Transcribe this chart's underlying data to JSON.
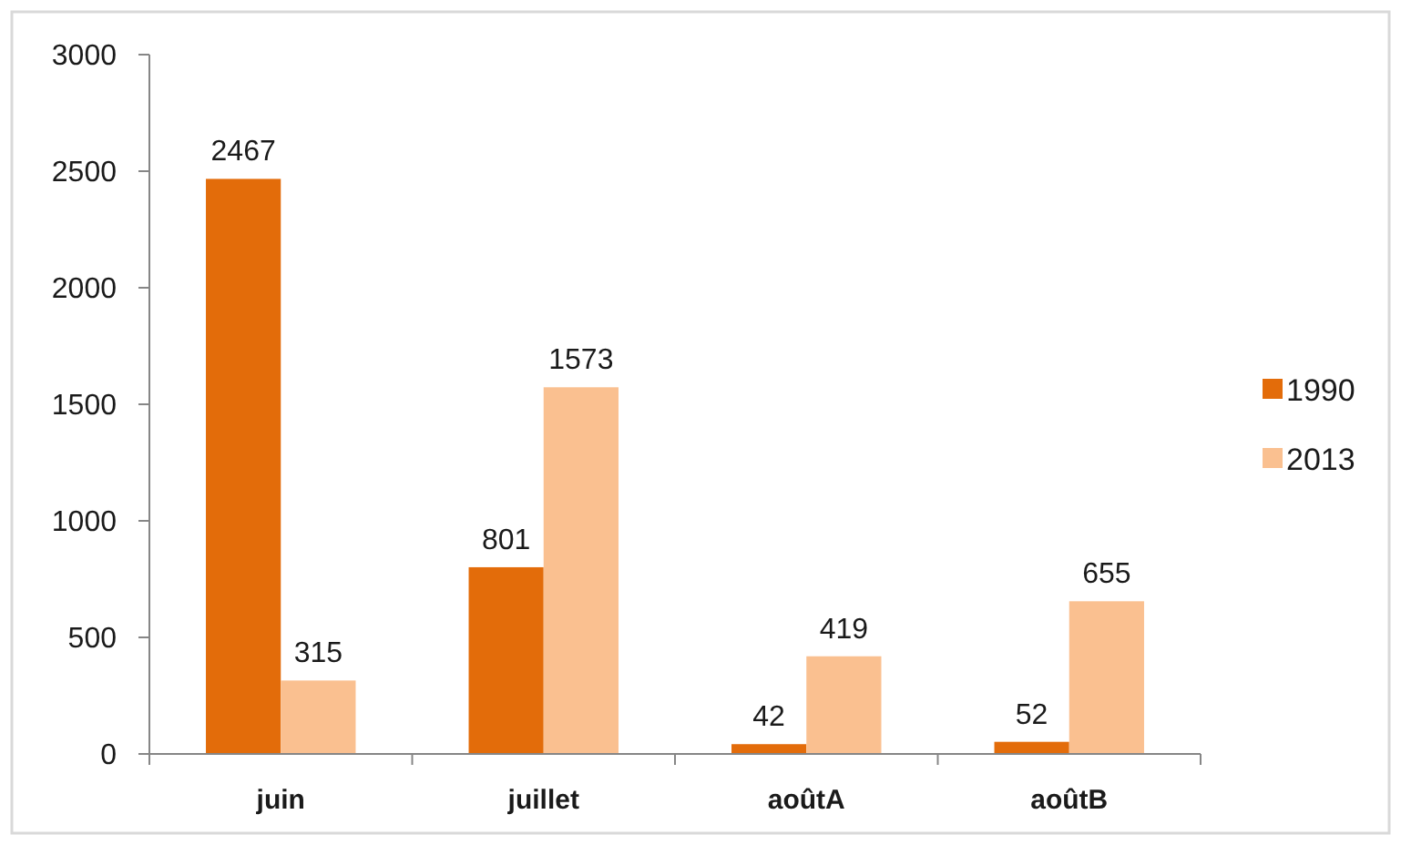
{
  "chart_data": {
    "type": "bar",
    "categories": [
      "juin",
      "juillet",
      "aoûtA",
      "aoûtB"
    ],
    "series": [
      {
        "name": "1990",
        "color": "#e36c0a",
        "values": [
          2467,
          801,
          42,
          52
        ]
      },
      {
        "name": "2013",
        "color": "#fac090",
        "values": [
          315,
          1573,
          419,
          655
        ]
      }
    ],
    "ylim": [
      0,
      3000
    ],
    "yticks": [
      0,
      500,
      1000,
      1500,
      2000,
      2500,
      3000
    ],
    "grid": false,
    "legend": "right",
    "data_labels": true
  }
}
